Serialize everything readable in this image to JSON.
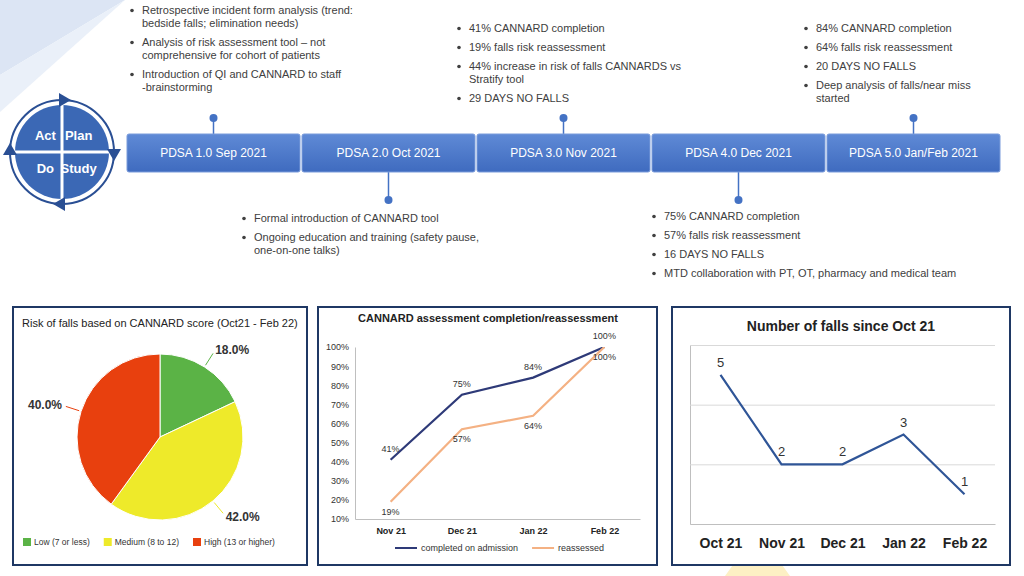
{
  "timeline": {
    "cycle": [
      "Act",
      "Plan",
      "Study",
      "Do"
    ],
    "stages": [
      {
        "label": "PDSA 1.0 Sep 2021",
        "bullets": [
          "Retrospective incident form analysis (trend: bedside falls; elimination needs)",
          "Analysis of risk assessment tool – not comprehensive for cohort of patients",
          "Introduction of QI and CANNARD to staff -brainstorming"
        ]
      },
      {
        "label": "PDSA 2.0 Oct 2021",
        "bullets": [
          "Formal introduction of CANNARD tool",
          "Ongoing education and training (safety pause, one-on-one talks)"
        ]
      },
      {
        "label": "PDSA 3.0 Nov 2021",
        "bullets": [
          "41% CANNARD completion",
          "19% falls risk reassessment",
          "44% increase in risk of falls CANNARDS vs Stratify tool",
          "29 DAYS NO FALLS"
        ]
      },
      {
        "label": "PDSA 4.0 Dec 2021",
        "bullets": [
          "75% CANNARD completion",
          "57% falls risk reassessment",
          "16 DAYS NO FALLS",
          "MTD collaboration with PT, OT, pharmacy and medical team"
        ]
      },
      {
        "label": "PDSA 5.0 Jan/Feb 2021",
        "bullets": [
          "84% CANNARD completion",
          "64% falls risk reassessment",
          "20 DAYS NO FALLS",
          "Deep analysis of falls/near miss started"
        ]
      }
    ]
  },
  "chart_data": [
    {
      "type": "pie",
      "title": "Risk of falls based on CANNARD score (Oct21 - Feb 22)",
      "categories": [
        "Low (7 or less)",
        "Medium (8 to 12)",
        "High (13 or higher)"
      ],
      "values": [
        18,
        42,
        40
      ],
      "value_labels": [
        "18.0%",
        "42.0%",
        "40.0%"
      ],
      "colors": [
        "#5bb346",
        "#eeea2a",
        "#e8400e"
      ],
      "data_labels": true,
      "legend": "bottom"
    },
    {
      "type": "line",
      "title": "CANNARD assessment completion/reassessment",
      "categories": [
        "Nov 21",
        "Dec 21",
        "Jan 22",
        "Feb 22"
      ],
      "series": [
        {
          "name": "completed on admission",
          "color": "#2e3a78",
          "values": [
            41,
            75,
            84,
            100
          ],
          "value_labels": [
            "41%",
            "75%",
            "84%",
            "100%"
          ]
        },
        {
          "name": "reassessed",
          "color": "#f4b183",
          "values": [
            19,
            57,
            64,
            100
          ],
          "value_labels": [
            "19%",
            "57%",
            "64%",
            "100%"
          ]
        }
      ],
      "ylim": [
        10,
        100
      ],
      "yticks": [
        {
          "value": 10,
          "label": "10%"
        },
        {
          "value": 20,
          "label": "20%"
        },
        {
          "value": 30,
          "label": "30%"
        },
        {
          "value": 40,
          "label": "40%"
        },
        {
          "value": 50,
          "label": "50%"
        },
        {
          "value": 60,
          "label": "60%"
        },
        {
          "value": 70,
          "label": "70%"
        },
        {
          "value": 80,
          "label": "80%"
        },
        {
          "value": 90,
          "label": "90%"
        },
        {
          "value": 100,
          "label": "100%"
        }
      ],
      "grid": false,
      "data_labels": true,
      "legend": "bottom"
    },
    {
      "type": "line",
      "title": "Number of falls since Oct 21",
      "categories": [
        "Oct 21",
        "Nov 21",
        "Dec 21",
        "Jan 22",
        "Feb 22"
      ],
      "values": [
        5,
        2,
        2,
        3,
        1
      ],
      "color": "#2f5597",
      "ylim": [
        0,
        6
      ],
      "yticks": [
        0,
        2,
        4,
        6
      ],
      "grid": true,
      "data_labels": true,
      "tick_labels": "x"
    }
  ]
}
